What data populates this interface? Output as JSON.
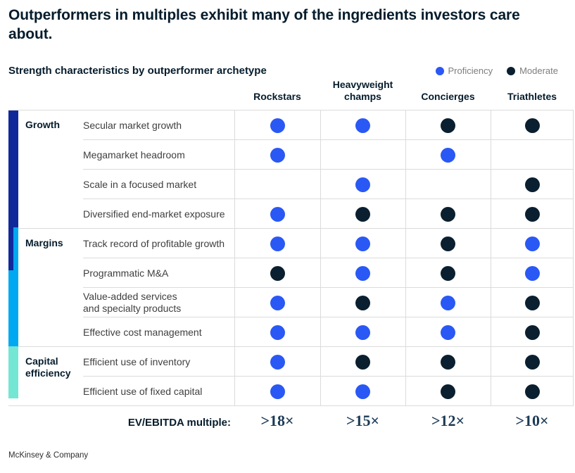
{
  "title": "Outperformers in multiples exhibit many of the ingredients investors care about.",
  "footer": "McKinsey & Company",
  "chart_data": {
    "type": "table",
    "title": "Strength characteristics by outperformer archetype",
    "legend": [
      {
        "key": "proficiency",
        "label": "Proficiency",
        "color": "#2A58F5"
      },
      {
        "key": "moderate",
        "label": "Moderate",
        "color": "#0A1F2F"
      }
    ],
    "columns": [
      "Rockstars",
      "Heavyweight champs",
      "Concierges",
      "Triathletes"
    ],
    "groups": [
      {
        "name": "Growth",
        "color": "#11289B",
        "rows": [
          {
            "label": "Secular market growth",
            "values": [
              "proficiency",
              "proficiency",
              "moderate",
              "moderate"
            ]
          },
          {
            "label": "Megamarket headroom",
            "values": [
              "proficiency",
              null,
              "proficiency",
              null
            ]
          },
          {
            "label": "Scale in a focused market",
            "values": [
              null,
              "proficiency",
              null,
              "moderate"
            ]
          },
          {
            "label": "Diversified end-market exposure",
            "values": [
              "proficiency",
              "moderate",
              "moderate",
              "moderate"
            ]
          }
        ]
      },
      {
        "name": "Margins",
        "color": "#00A8F2",
        "rows": [
          {
            "label": "Track record of profitable growth",
            "values": [
              "proficiency",
              "proficiency",
              "moderate",
              "proficiency"
            ]
          },
          {
            "label": "Programmatic M&A",
            "values": [
              "moderate",
              "proficiency",
              "moderate",
              "proficiency"
            ]
          },
          {
            "label": "Value-added services\nand specialty products",
            "values": [
              "proficiency",
              "moderate",
              "proficiency",
              "moderate"
            ]
          },
          {
            "label": "Effective cost management",
            "values": [
              "proficiency",
              "proficiency",
              "proficiency",
              "moderate"
            ]
          }
        ]
      },
      {
        "name": "Capital efficiency",
        "color": "#73E6D4",
        "rows": [
          {
            "label": "Efficient use of inventory",
            "values": [
              "proficiency",
              "moderate",
              "moderate",
              "moderate"
            ]
          },
          {
            "label": "Efficient use of fixed capital",
            "values": [
              "proficiency",
              "proficiency",
              "moderate",
              "moderate"
            ]
          }
        ]
      }
    ],
    "ev_ebitda": {
      "label": "EV/EBITDA multiple:",
      "values": [
        ">18×",
        ">15×",
        ">12×",
        ">10×"
      ]
    }
  }
}
